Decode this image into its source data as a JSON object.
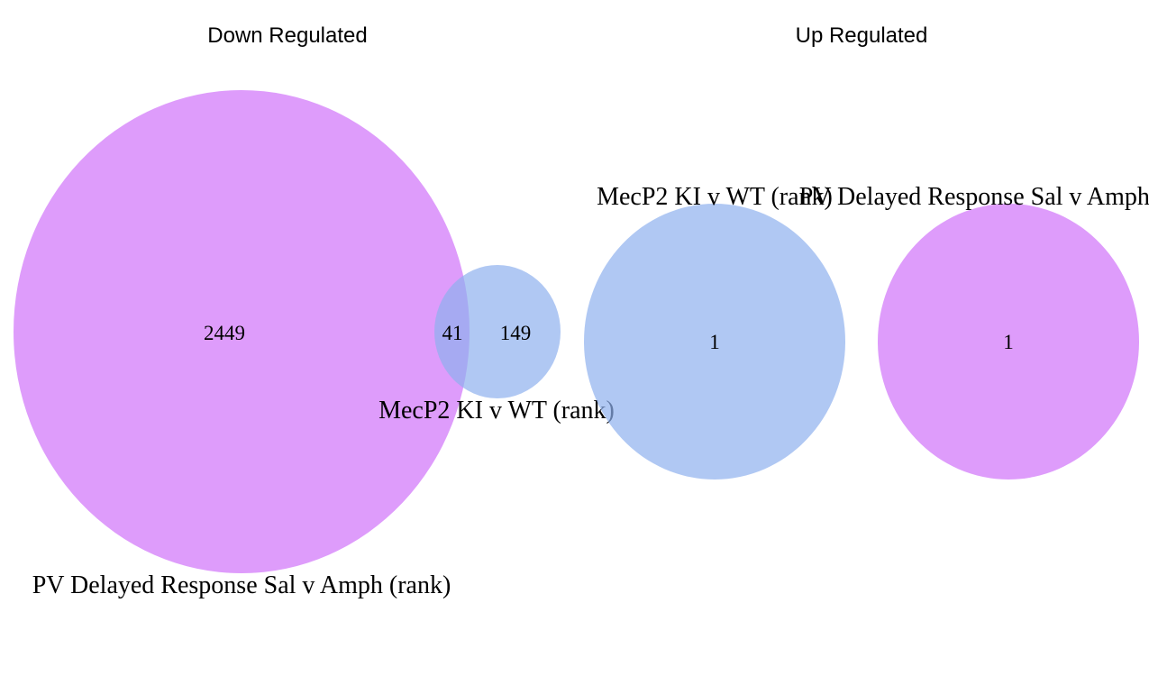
{
  "colors": {
    "pv_set": "#d580fa",
    "mecp2_set": "#8fb0ee",
    "background": "#ffffff"
  },
  "panels": [
    {
      "title": "Down Regulated",
      "sets": {
        "left": {
          "label": "PV Delayed Response Sal v Amph (rank)",
          "color_key": "pv_set"
        },
        "right": {
          "label": "MecP2  KI v WT (rank)",
          "color_key": "mecp2_set"
        }
      },
      "counts": {
        "left_only": "2449",
        "overlap": "41",
        "right_only": "149"
      }
    },
    {
      "title": "Up Regulated",
      "sets": {
        "left": {
          "label": "MecP2  KI v WT (rank)",
          "color_key": "mecp2_set"
        },
        "right": {
          "label": "PV Delayed Response Sal v Amph (rank)",
          "color_key": "pv_set"
        }
      },
      "counts": {
        "left_only": "1",
        "right_only": "1"
      }
    }
  ]
}
